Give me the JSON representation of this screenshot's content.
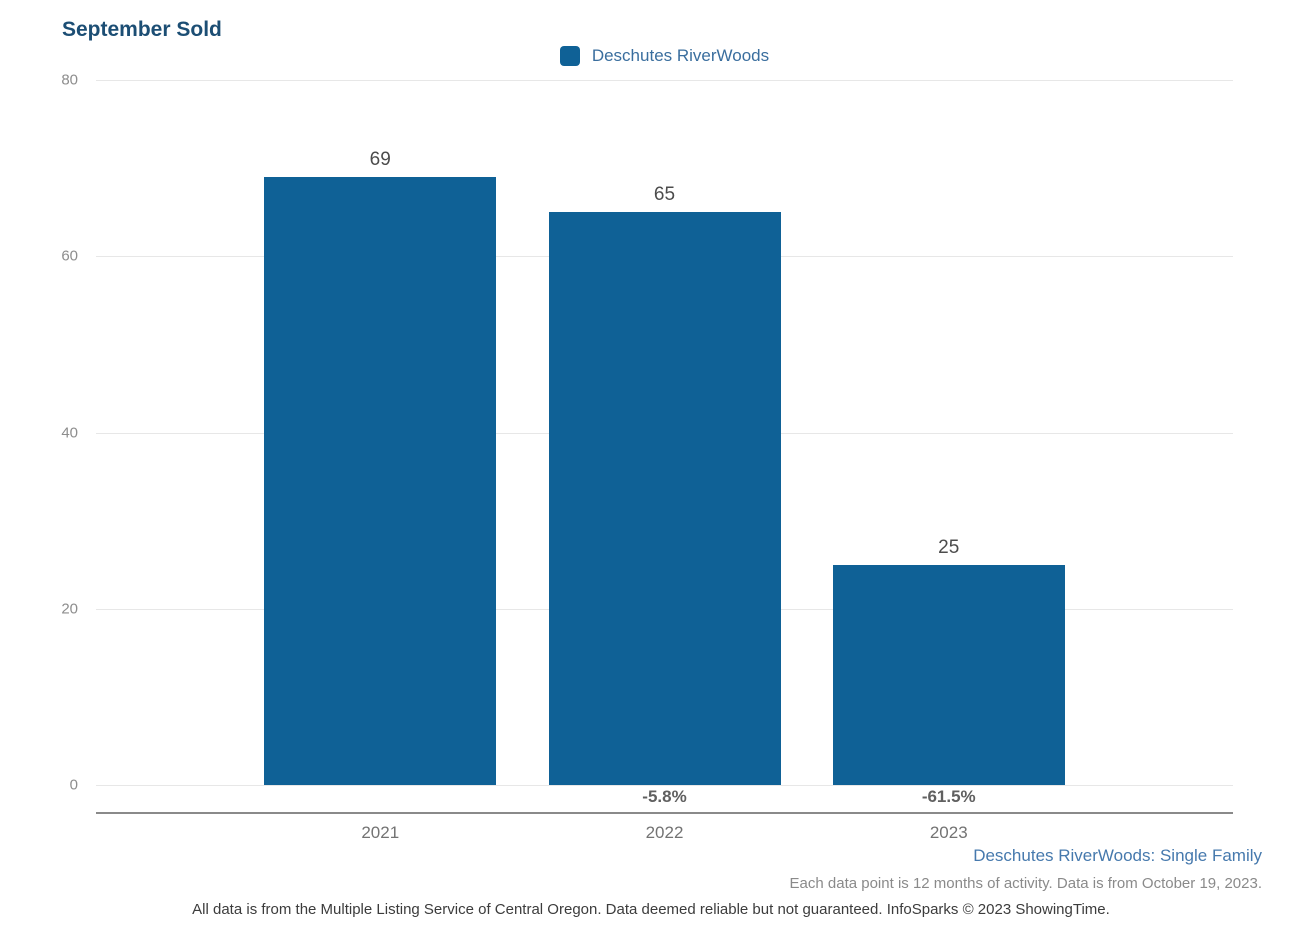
{
  "title": "September Sold",
  "legend": {
    "label": "Deschutes RiverWoods"
  },
  "colors": {
    "bar": "#0f6196",
    "title_text": "#1c4e74",
    "legend_text": "#3a6e9e",
    "footnote_link_text": "#4679ad"
  },
  "chart_data": {
    "type": "bar",
    "title": "September Sold",
    "categories": [
      "2021",
      "2022",
      "2023"
    ],
    "series": [
      {
        "name": "Deschutes RiverWoods",
        "values": [
          69,
          65,
          25
        ]
      }
    ],
    "value_labels": [
      "69",
      "65",
      "25"
    ],
    "pct_change_labels": [
      "",
      "-5.8%",
      "-61.5%"
    ],
    "xlabel": "",
    "ylabel": "",
    "ylim": [
      0,
      80
    ],
    "yticks": [
      0,
      20,
      40,
      60,
      80
    ],
    "grid": "horizontal",
    "legend_position": "top-center"
  },
  "footnotes": {
    "series_context": "Deschutes RiverWoods: Single Family",
    "data_period": "Each data point is 12 months of activity. Data is from October 19, 2023.",
    "disclaimer": "All data is from the Multiple Listing Service of Central Oregon. Data deemed reliable but not guaranteed. InfoSparks © 2023 ShowingTime."
  }
}
